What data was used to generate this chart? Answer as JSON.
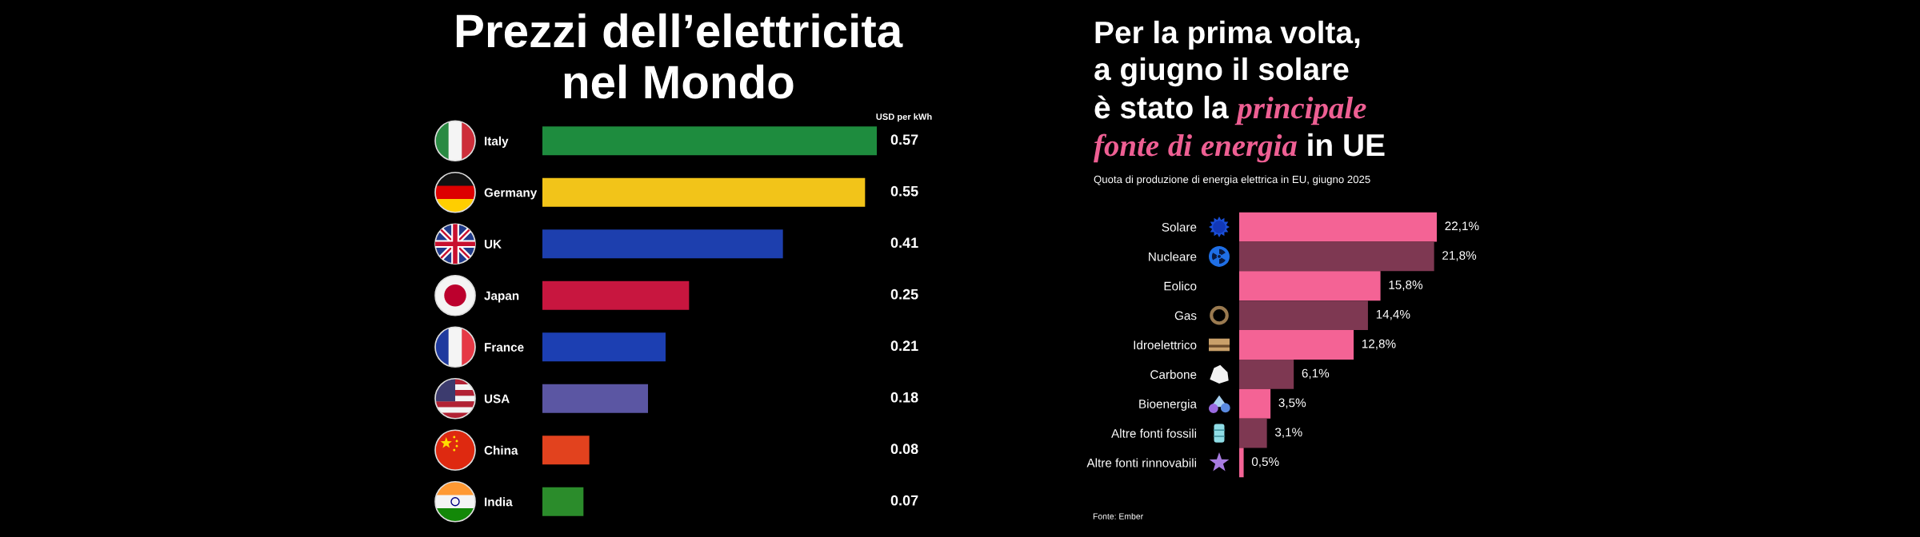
{
  "chart_data": [
    {
      "type": "bar",
      "orientation": "horizontal",
      "title": "Prezzi dell’elettricita nel Mondo",
      "xlabel": "USD per kWh",
      "categories": [
        "Italy",
        "Germany",
        "UK",
        "Japan",
        "France",
        "USA",
        "China",
        "India"
      ],
      "values": [
        0.57,
        0.55,
        0.41,
        0.25,
        0.21,
        0.18,
        0.08,
        0.07
      ],
      "colors": [
        "#1e8c3e",
        "#f2c419",
        "#1d3fae",
        "#c8163f",
        "#1c3fb2",
        "#5b56a3",
        "#e2421e",
        "#2b8c2b"
      ],
      "xlim": [
        0,
        0.57
      ],
      "data_labels": true,
      "tick_labels": "y"
    },
    {
      "type": "bar",
      "orientation": "horizontal",
      "title": "Per la prima volta, a giugno il solare è stato la principale fonte di energia in UE",
      "subtitle": "Quota di produzione di energia elettrica in EU, giugno 2025",
      "categories": [
        "Solare",
        "Nucleare",
        "Eolico",
        "Gas",
        "Idroelettrico",
        "Carbone",
        "Bioenergia",
        "Altre fonti fossili",
        "Altre fonti rinnovabili"
      ],
      "values": [
        22.1,
        21.8,
        15.8,
        14.4,
        12.8,
        6.1,
        3.5,
        3.1,
        0.5
      ],
      "value_labels": [
        "22,1%",
        "21,8%",
        "15,8%",
        "14,4%",
        "12,8%",
        "6,1%",
        "3,5%",
        "3,1%",
        "0,5%"
      ],
      "colors": [
        "#f46395",
        "#7e3852",
        "#f46395",
        "#7e3852",
        "#f46395",
        "#7e3852",
        "#f46395",
        "#7e3852",
        "#f46395"
      ],
      "xlim": [
        0,
        22.1
      ],
      "tick_labels": "y",
      "annotations": [
        "Fonte: Ember"
      ]
    }
  ]
}
